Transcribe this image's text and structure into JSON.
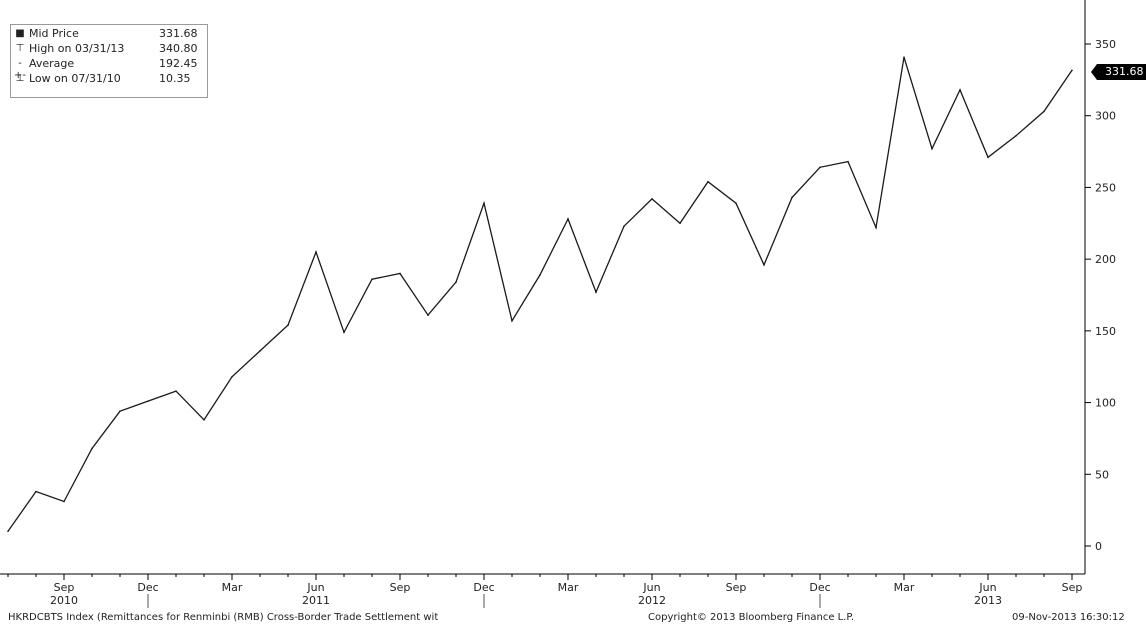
{
  "legend": {
    "items": [
      {
        "icon": "square-marker-icon",
        "label": "Mid Price",
        "value": "331.68"
      },
      {
        "icon": "high-marker-icon",
        "label": "High on 03/31/13",
        "value": "340.80"
      },
      {
        "icon": "average-line-icon",
        "label": "Average",
        "value": "192.45"
      },
      {
        "icon": "low-marker-icon",
        "label": "Low on 07/31/10",
        "value": "10.35"
      }
    ]
  },
  "last_value_tag": "331.68",
  "footer": {
    "description": "HKRDCBTS Index (Remittances for Renminbi (RMB) Cross-Border Trade Settlement wit",
    "copyright": "Copyright© 2013 Bloomberg Finance L.P.",
    "timestamp": "09-Nov-2013 16:30:12"
  },
  "chart_data": {
    "type": "line",
    "title": "",
    "xlabel": "",
    "ylabel": "",
    "ylim": [
      0,
      350
    ],
    "y_ticks": [
      0,
      50,
      100,
      150,
      200,
      250,
      300,
      350
    ],
    "x": [
      "2010-07",
      "2010-08",
      "2010-09",
      "2010-10",
      "2010-11",
      "2010-12",
      "2011-01",
      "2011-02",
      "2011-03",
      "2011-04",
      "2011-05",
      "2011-06",
      "2011-07",
      "2011-08",
      "2011-09",
      "2011-10",
      "2011-11",
      "2011-12",
      "2012-01",
      "2012-02",
      "2012-03",
      "2012-04",
      "2012-05",
      "2012-06",
      "2012-07",
      "2012-08",
      "2012-09",
      "2012-10",
      "2012-11",
      "2012-12",
      "2013-01",
      "2013-02",
      "2013-03",
      "2013-04",
      "2013-05",
      "2013-06",
      "2013-07",
      "2013-08",
      "2013-09"
    ],
    "series": [
      {
        "name": "Mid Price",
        "color": "#1a1a1a",
        "values": [
          10.35,
          38,
          31,
          68,
          94,
          101,
          108,
          88,
          118,
          136,
          154,
          205,
          149,
          186,
          190,
          161,
          184,
          239,
          157,
          189,
          228,
          177,
          223,
          242,
          225,
          254,
          239,
          196,
          243,
          264,
          268,
          222,
          340.8,
          277,
          318,
          271,
          286,
          303,
          331.68
        ]
      }
    ],
    "x_tick_labels": [
      {
        "month": "Sep",
        "at": "2010-09"
      },
      {
        "month": "Dec",
        "at": "2010-12"
      },
      {
        "month": "Mar",
        "at": "2011-03"
      },
      {
        "month": "Jun",
        "at": "2011-06"
      },
      {
        "month": "Sep",
        "at": "2011-09"
      },
      {
        "month": "Dec",
        "at": "2011-12"
      },
      {
        "month": "Mar",
        "at": "2012-03"
      },
      {
        "month": "Jun",
        "at": "2012-06"
      },
      {
        "month": "Sep",
        "at": "2012-09"
      },
      {
        "month": "Dec",
        "at": "2012-12"
      },
      {
        "month": "Mar",
        "at": "2013-03"
      },
      {
        "month": "Jun",
        "at": "2013-06"
      },
      {
        "month": "Sep",
        "at": "2013-09"
      }
    ],
    "x_year_labels": [
      {
        "year": "2010",
        "at": "2010-09"
      },
      {
        "year": "2011",
        "at": "2011-06"
      },
      {
        "year": "2012",
        "at": "2012-06"
      },
      {
        "year": "2013",
        "at": "2013-06"
      }
    ],
    "year_boundaries": [
      "2010-12",
      "2011-12",
      "2012-12"
    ],
    "grid": false,
    "legend_position": "top-left"
  }
}
